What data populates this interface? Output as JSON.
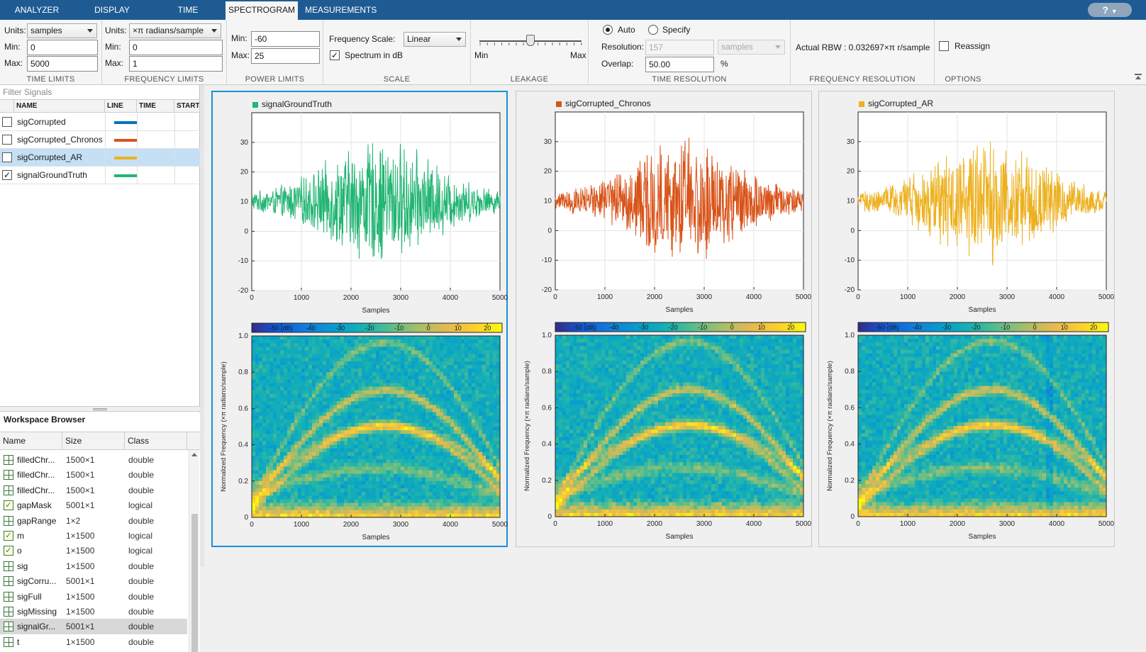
{
  "tabs": [
    {
      "label": "ANALYZER",
      "active": false
    },
    {
      "label": "DISPLAY",
      "active": false
    },
    {
      "label": "TIME",
      "active": false
    },
    {
      "label": "SPECTROGRAM",
      "active": true
    },
    {
      "label": "MEASUREMENTS",
      "active": false
    }
  ],
  "help": {
    "label": "?"
  },
  "ribbon": {
    "time_limits": {
      "title": "TIME LIMITS",
      "units_label": "Units:",
      "units_value": "samples",
      "min_label": "Min:",
      "min_value": "0",
      "max_label": "Max:",
      "max_value": "5000"
    },
    "frequency_limits": {
      "title": "FREQUENCY LIMITS",
      "units_label": "Units:",
      "units_value": "×π radians/sample",
      "min_label": "Min:",
      "min_value": "0",
      "max_label": "Max:",
      "max_value": "1"
    },
    "power_limits": {
      "title": "POWER LIMITS",
      "min_label": "Min:",
      "min_value": "-60",
      "max_label": "Max:",
      "max_value": "25"
    },
    "scale": {
      "title": "SCALE",
      "freq_scale_label": "Frequency Scale:",
      "freq_scale_value": "Linear",
      "spectrum_db_label": "Spectrum in dB",
      "spectrum_db_checked": true
    },
    "leakage": {
      "title": "LEAKAGE",
      "min_label": "Min",
      "max_label": "Max",
      "level": 0.5
    },
    "time_resolution": {
      "title": "TIME RESOLUTION",
      "auto_label": "Auto",
      "specify_label": "Specify",
      "mode": "Auto",
      "resolution_label": "Resolution:",
      "resolution_value": "157",
      "resolution_units": "samples",
      "overlap_label": "Overlap:",
      "overlap_value": "50.00",
      "overlap_unit": "%"
    },
    "frequency_resolution": {
      "title": "FREQUENCY RESOLUTION",
      "rbw_text": "Actual RBW : 0.032697×π r/sample"
    },
    "options": {
      "title": "OPTIONS",
      "reassign_label": "Reassign",
      "reassign_checked": false
    }
  },
  "signals": {
    "filter_placeholder": "Filter Signals",
    "columns": [
      "NAME",
      "LINE",
      "TIME",
      "START"
    ],
    "rows": [
      {
        "name": "sigCorrupted",
        "checked": false,
        "color": "#0072bd",
        "selected": false
      },
      {
        "name": "sigCorrupted_Chronos",
        "checked": false,
        "color": "#d95319",
        "selected": false
      },
      {
        "name": "sigCorrupted_AR",
        "checked": false,
        "color": "#edb120",
        "selected": true
      },
      {
        "name": "signalGroundTruth",
        "checked": true,
        "color": "#22b573",
        "selected": false
      }
    ]
  },
  "workspace": {
    "title": "Workspace Browser",
    "columns": [
      "Name",
      "Size",
      "Class"
    ],
    "rows": [
      {
        "name": "filledChr...",
        "size": "1500×1",
        "class": "double",
        "icon": "grid"
      },
      {
        "name": "filledChr...",
        "size": "1500×1",
        "class": "double",
        "icon": "grid"
      },
      {
        "name": "filledChr...",
        "size": "1500×1",
        "class": "double",
        "icon": "grid"
      },
      {
        "name": "gapMask",
        "size": "5001×1",
        "class": "logical",
        "icon": "check"
      },
      {
        "name": "gapRange",
        "size": "1×2",
        "class": "double",
        "icon": "grid"
      },
      {
        "name": "m",
        "size": "1×1500",
        "class": "logical",
        "icon": "check"
      },
      {
        "name": "o",
        "size": "1×1500",
        "class": "logical",
        "icon": "check"
      },
      {
        "name": "sig",
        "size": "1×1500",
        "class": "double",
        "icon": "grid"
      },
      {
        "name": "sigCorru...",
        "size": "5001×1",
        "class": "double",
        "icon": "grid"
      },
      {
        "name": "sigFull",
        "size": "1×1500",
        "class": "double",
        "icon": "grid"
      },
      {
        "name": "sigMissing",
        "size": "1×1500",
        "class": "double",
        "icon": "grid"
      },
      {
        "name": "signalGr...",
        "size": "5001×1",
        "class": "double",
        "icon": "grid",
        "selected": true
      },
      {
        "name": "t",
        "size": "1×1500",
        "class": "double",
        "icon": "grid"
      }
    ]
  },
  "plots": [
    {
      "legend": "signalGroundTruth",
      "color": "#22b573",
      "active": true,
      "xmax_data": 5000
    },
    {
      "legend": "sigCorrupted_Chronos",
      "color": "#d95319",
      "active": false,
      "xmax_data": 5000
    },
    {
      "legend": "sigCorrupted_AR",
      "color": "#edb120",
      "active": false,
      "xmax_data": 5000
    }
  ],
  "time_axes": {
    "xlabel": "Samples",
    "xticks": [
      "0",
      "1000",
      "2000",
      "3000",
      "4000",
      "5000"
    ],
    "yticks": [
      "30",
      "20",
      "10",
      "0",
      "-10",
      "-20"
    ],
    "ylim": [
      -20,
      40
    ],
    "xlim": [
      0,
      5000
    ]
  },
  "spec_axes": {
    "xlabel": "Samples",
    "ylabel": "Normalized Frequency (×π radians/sample)",
    "xticks": [
      "0",
      "1000",
      "2000",
      "3000",
      "4000",
      "5000"
    ],
    "yticks": [
      "1.0",
      "0.8",
      "0.6",
      "0.4",
      "0.2",
      "0"
    ],
    "ylim": [
      0,
      1
    ],
    "xlim": [
      0,
      5000
    ]
  },
  "colorbar": {
    "ticks": [
      "-50 (dB)",
      "-40",
      "-30",
      "-20",
      "-10",
      "0",
      "10",
      "20"
    ],
    "range": [
      -60,
      25
    ]
  }
}
